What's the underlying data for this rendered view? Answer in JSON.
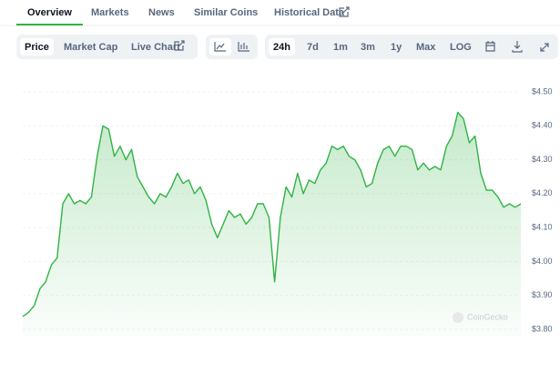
{
  "tabs": [
    "Overview",
    "Markets",
    "News",
    "Similar Coins",
    "Historical Data"
  ],
  "active_tab": 0,
  "toolbar": {
    "data_types": [
      "Price",
      "Market Cap",
      "Live Chart"
    ],
    "active_data_type": 0,
    "ranges": [
      "24h",
      "7d",
      "1m",
      "3m",
      "1y",
      "Max",
      "LOG"
    ],
    "active_range": 0
  },
  "chart_data": {
    "type": "line",
    "color": "#2fb344",
    "values": [
      3.838,
      3.85,
      3.87,
      3.92,
      3.94,
      3.99,
      4.01,
      4.17,
      4.2,
      4.17,
      4.18,
      4.17,
      4.19,
      4.31,
      4.4,
      4.39,
      4.31,
      4.34,
      4.3,
      4.33,
      4.25,
      4.22,
      4.19,
      4.17,
      4.2,
      4.19,
      4.22,
      4.26,
      4.23,
      4.24,
      4.2,
      4.22,
      4.18,
      4.11,
      4.07,
      4.11,
      4.15,
      4.13,
      4.14,
      4.11,
      4.13,
      4.17,
      4.17,
      4.13,
      3.94,
      4.13,
      4.22,
      4.19,
      4.26,
      4.2,
      4.24,
      4.23,
      4.27,
      4.29,
      4.34,
      4.33,
      4.34,
      4.31,
      4.3,
      4.27,
      4.22,
      4.23,
      4.29,
      4.33,
      4.34,
      4.31,
      4.34,
      4.34,
      4.33,
      4.27,
      4.29,
      4.27,
      4.28,
      4.27,
      4.34,
      4.37,
      4.44,
      4.42,
      4.35,
      4.37,
      4.26,
      4.21,
      4.21,
      4.19,
      4.16,
      4.17,
      4.16,
      4.17
    ],
    "ylim": [
      3.8,
      4.5
    ],
    "yticks": [
      {
        "value": 4.5,
        "label": "$4.50"
      },
      {
        "value": 4.4,
        "label": "$4.40"
      },
      {
        "value": 4.3,
        "label": "$4.30"
      },
      {
        "value": 4.2,
        "label": "$4.20"
      },
      {
        "value": 4.1,
        "label": "$4.10"
      },
      {
        "value": 4.0,
        "label": "$4.00"
      },
      {
        "value": 3.9,
        "label": "$3.90"
      },
      {
        "value": 3.8,
        "label": "$3.80"
      }
    ],
    "grid": true,
    "watermark": "CoinGecko"
  }
}
